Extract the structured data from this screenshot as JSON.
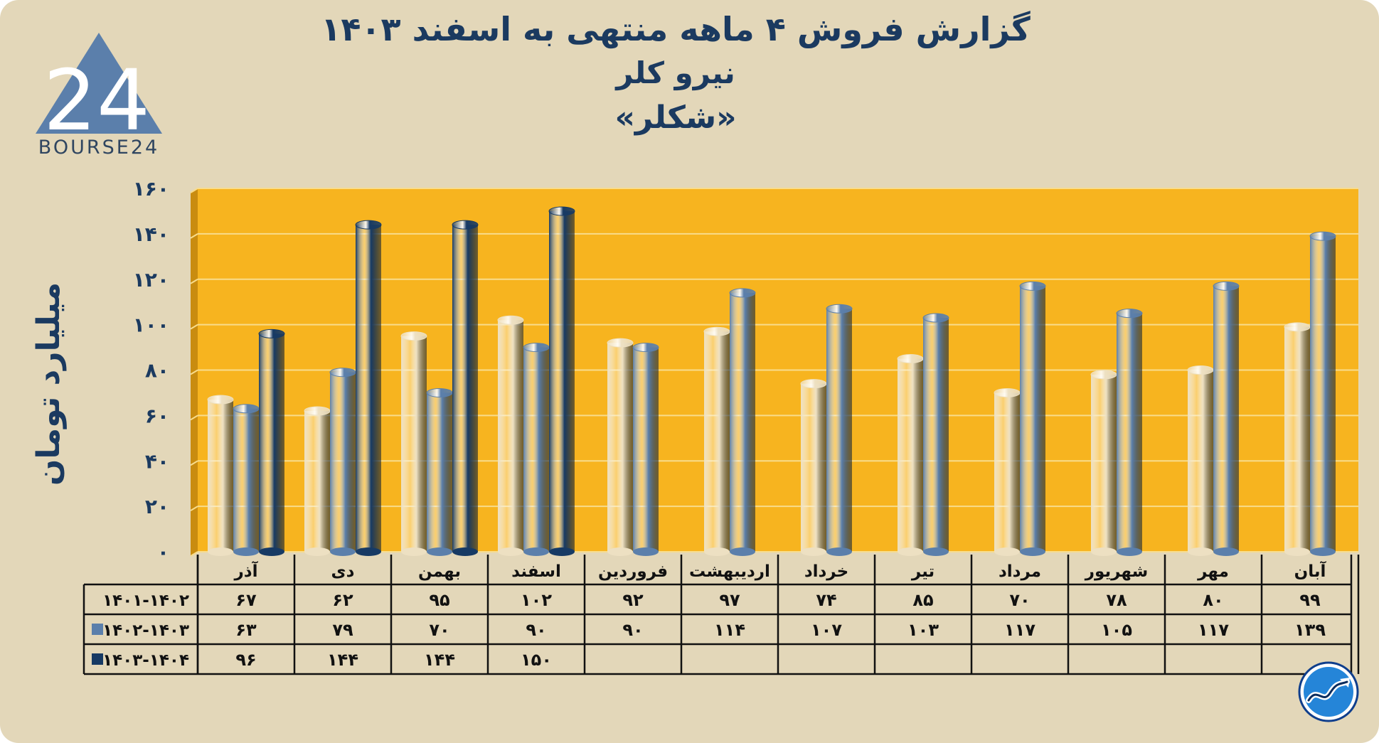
{
  "title_lines": [
    "گزارش  فروش ۴ ماهه منتهی به اسفند ۱۴۰۳",
    "نیرو کلر",
    "«شکلر»"
  ],
  "logo": {
    "text": "BOURSE24",
    "mark": "24",
    "icon": "triangle-logo-icon"
  },
  "corner_logo": {
    "icon": "trend-arrow-circle-icon"
  },
  "colors": {
    "background": "#e3d7b9",
    "plot": "#f7b41f",
    "series_1401_1402": "#ede0c2",
    "series_1402_1403": "#5b7fab",
    "series_1403_1404": "#173a64",
    "text": "#1b3a60"
  },
  "chart_data": {
    "type": "bar",
    "title": "گزارش  فروش ۴ ماهه منتهی به اسفند ۱۴۰۳",
    "subtitle": [
      "نیرو کلر",
      "«شکلر»"
    ],
    "ylabel": "میلیارد تومان",
    "xlabel": "",
    "ylim": [
      0,
      160
    ],
    "yticks": [
      "۰",
      "۲۰",
      "۴۰",
      "۶۰",
      "۸۰",
      "۱۰۰",
      "۱۲۰",
      "۱۴۰",
      "۱۶۰"
    ],
    "ytick_values": [
      0,
      20,
      40,
      60,
      80,
      100,
      120,
      140,
      160
    ],
    "grid": true,
    "legend": "table-left",
    "categories": [
      "آذر",
      "دی",
      "بهمن",
      "اسفند",
      "فروردین",
      "اردیبهشت",
      "خرداد",
      "تیر",
      "مرداد",
      "شهریور",
      "مهر",
      "آبان"
    ],
    "series": [
      {
        "name": "۱۴۰۱-۱۴۰۲",
        "color": "#ede0c2",
        "values": [
          67,
          62,
          95,
          102,
          92,
          97,
          74,
          85,
          70,
          78,
          80,
          99
        ],
        "labels": [
          "۶۷",
          "۶۲",
          "۹۵",
          "۱۰۲",
          "۹۲",
          "۹۷",
          "۷۴",
          "۸۵",
          "۷۰",
          "۷۸",
          "۸۰",
          "۹۹"
        ]
      },
      {
        "name": "۱۴۰۲-۱۴۰۳",
        "color": "#5b7fab",
        "values": [
          63,
          79,
          70,
          90,
          90,
          114,
          107,
          103,
          117,
          105,
          117,
          139
        ],
        "labels": [
          "۶۳",
          "۷۹",
          "۷۰",
          "۹۰",
          "۹۰",
          "۱۱۴",
          "۱۰۷",
          "۱۰۳",
          "۱۱۷",
          "۱۰۵",
          "۱۱۷",
          "۱۳۹"
        ]
      },
      {
        "name": "۱۴۰۳-۱۴۰۴",
        "color": "#173a64",
        "values": [
          96,
          144,
          144,
          150,
          null,
          null,
          null,
          null,
          null,
          null,
          null,
          null
        ],
        "labels": [
          "۹۶",
          "۱۴۴",
          "۱۴۴",
          "۱۵۰",
          "",
          "",
          "",
          "",
          "",
          "",
          "",
          ""
        ]
      }
    ]
  }
}
